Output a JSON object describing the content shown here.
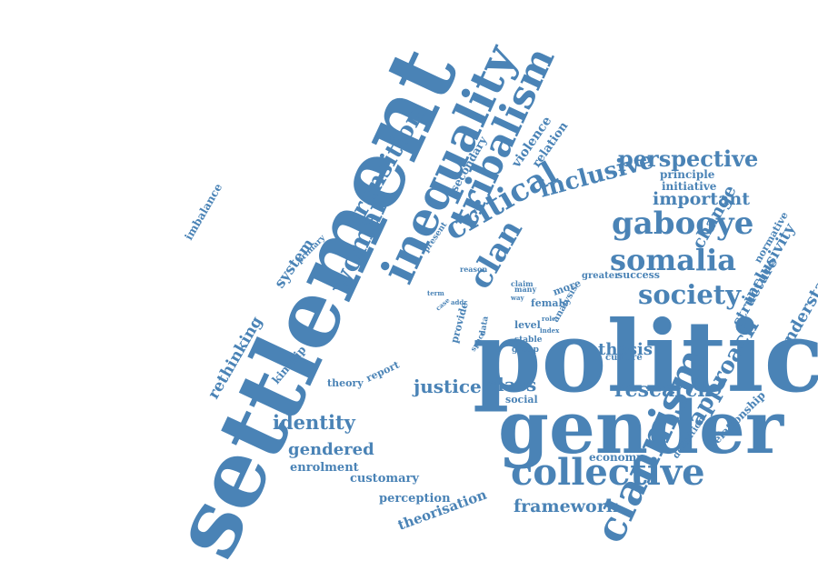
{
  "word_cloud": {
    "color": "#4a83b6",
    "words": [
      "settlement",
      "political",
      "gender",
      "inequality",
      "tribalism",
      "clannism",
      "collective",
      "critical",
      "gabooye",
      "somalia",
      "society",
      "clan",
      "woman",
      "transition",
      "inclusive",
      "perspective",
      "important",
      "approach",
      "research",
      "identity",
      "gendered",
      "justice",
      "class",
      "framework",
      "thesis",
      "structure",
      "inclusivity",
      "understanding",
      "change",
      "system",
      "rethinking",
      "imbalance",
      "enrolment",
      "customary",
      "perception",
      "theorisation",
      "kinship",
      "theory",
      "report",
      "social",
      "economy",
      "relationship",
      "definition",
      "culture",
      "analysis",
      "group",
      "stable",
      "level",
      "female",
      "more",
      "success",
      "greater",
      "claim",
      "many",
      "way",
      "role",
      "index",
      "data",
      "space",
      "provide",
      "term",
      "case",
      "addr",
      "reason",
      "present",
      "primary",
      "secondary",
      "violence",
      "relation",
      "principle",
      "initiative",
      "normative"
    ]
  }
}
